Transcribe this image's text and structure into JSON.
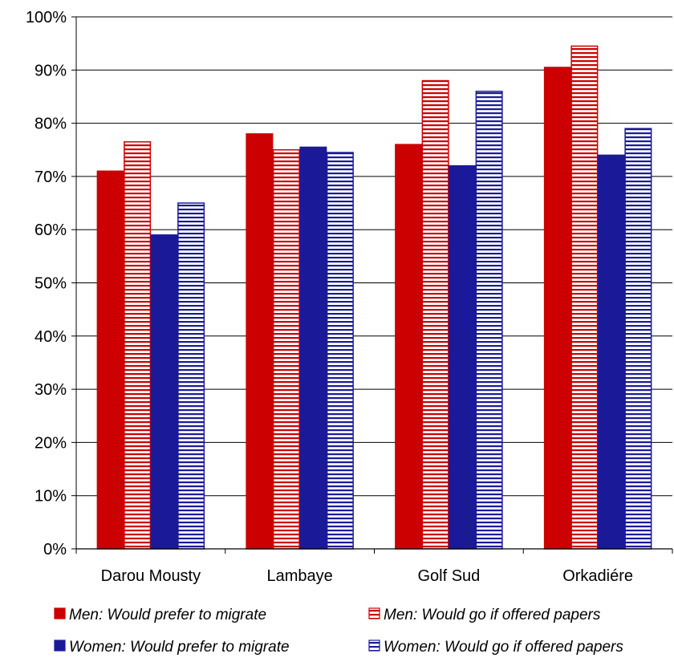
{
  "chart_data": {
    "type": "bar",
    "title": "",
    "xlabel": "",
    "ylabel": "",
    "ylim": [
      0,
      100
    ],
    "yticks": [
      0,
      10,
      20,
      30,
      40,
      50,
      60,
      70,
      80,
      90,
      100
    ],
    "ytick_labels": [
      "0%",
      "10%",
      "20%",
      "30%",
      "40%",
      "50%",
      "60%",
      "70%",
      "80%",
      "90%",
      "100%"
    ],
    "grid": true,
    "legend_position": "bottom",
    "categories": [
      "Darou Mousty",
      "Lambaye",
      "Golf Sud",
      "Orkadiére"
    ],
    "series": [
      {
        "name": "Men: Would prefer to migrate",
        "values": [
          71,
          78,
          76,
          90.5
        ],
        "color": "#cc0000",
        "pattern": "solid"
      },
      {
        "name": "Men: Would go if offered papers",
        "values": [
          76.5,
          75,
          88,
          94.5
        ],
        "color": "#cc0000",
        "pattern": "horizontal-stripes"
      },
      {
        "name": "Women: Would prefer to migrate",
        "values": [
          59,
          75.5,
          72,
          74
        ],
        "color": "#1a1a99",
        "pattern": "solid"
      },
      {
        "name": "Women: Would go if offered papers",
        "values": [
          65,
          74.5,
          86,
          79
        ],
        "color": "#1a1a99",
        "pattern": "horizontal-stripes"
      }
    ]
  }
}
